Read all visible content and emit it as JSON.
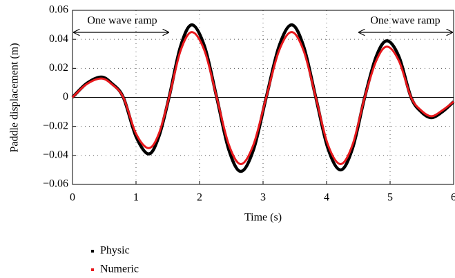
{
  "chart_data": {
    "type": "line",
    "xlabel": "Time (s)",
    "ylabel": "Paddle displacement  (m)",
    "annotations": [
      "One wave ramp",
      "One wave ramp"
    ],
    "x": [
      0,
      0.22,
      0.45,
      0.62,
      0.8,
      1.0,
      1.2,
      1.36,
      1.52,
      1.7,
      1.88,
      2.08,
      2.27,
      2.46,
      2.65,
      2.85,
      3.05,
      3.25,
      3.45,
      3.64,
      3.83,
      4.02,
      4.22,
      4.41,
      4.6,
      4.78,
      4.95,
      5.14,
      5.33,
      5.49,
      5.65,
      5.82,
      6.0
    ],
    "series": [
      {
        "name": "Physic",
        "color": "#000000",
        "values": [
          0,
          0.0095,
          0.014,
          0.0095,
          0,
          -0.027,
          -0.039,
          -0.027,
          0,
          0.035,
          0.05,
          0.035,
          0,
          -0.036,
          -0.051,
          -0.036,
          0,
          0.035,
          0.05,
          0.035,
          0,
          -0.035,
          -0.05,
          -0.035,
          0,
          0.028,
          0.039,
          0.028,
          0,
          -0.01,
          -0.014,
          -0.01,
          -0.003
        ]
      },
      {
        "name": "Numeric",
        "color": "#e8181c",
        "values": [
          0,
          0.009,
          0.013,
          0.009,
          0,
          -0.025,
          -0.035,
          -0.025,
          0,
          0.032,
          0.045,
          0.032,
          0,
          -0.0325,
          -0.046,
          -0.0325,
          0,
          0.032,
          0.045,
          0.032,
          0,
          -0.0325,
          -0.046,
          -0.0325,
          0,
          0.025,
          0.035,
          0.025,
          0,
          -0.009,
          -0.013,
          -0.009,
          -0.003
        ]
      }
    ],
    "xlim": [
      0,
      6
    ],
    "xticks": [
      0,
      1,
      2,
      3,
      4,
      5,
      6
    ],
    "ylim": [
      -0.06,
      0.06
    ],
    "yticks": [
      {
        "value": -0.06,
        "label": "−0.06"
      },
      {
        "value": -0.04,
        "label": "−0.04"
      },
      {
        "value": -0.02,
        "label": "−0.02"
      },
      0,
      0.02,
      0.04,
      0.06
    ],
    "grid": true
  }
}
